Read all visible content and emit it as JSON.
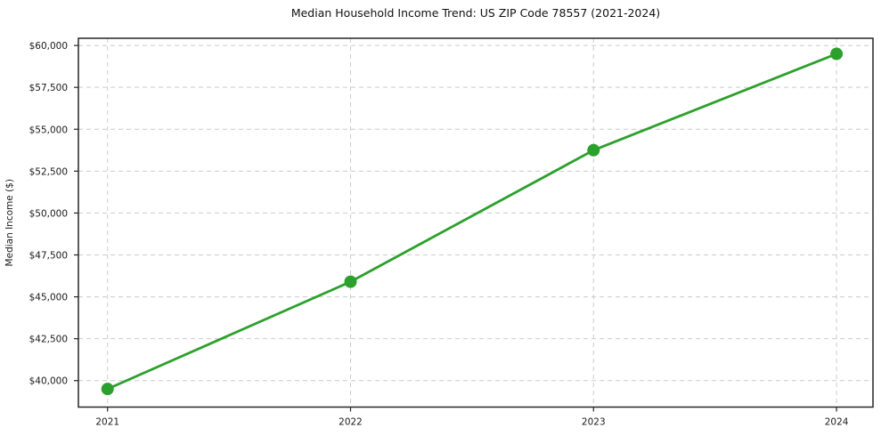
{
  "figure": {
    "background": "#ffffff"
  },
  "chart_data": {
    "type": "line",
    "title": "Median Household Income Trend: US ZIP Code 78557 (2021-2024)",
    "xlabel": "",
    "ylabel": "Median Income ($)",
    "x": [
      2021,
      2022,
      2023,
      2024
    ],
    "x_tick_labels": [
      "2021",
      "2022",
      "2023",
      "2024"
    ],
    "series": [
      {
        "name": "median-household-income",
        "color": "#2ca02c",
        "values": [
          39500,
          45900,
          53750,
          59500
        ]
      }
    ],
    "y_ticks": [
      40000,
      42500,
      45000,
      47500,
      50000,
      52500,
      55000,
      57500,
      60000
    ],
    "y_tick_labels": [
      "$40,000",
      "$42,500",
      "$45,000",
      "$47,500",
      "$50,000",
      "$52,500",
      "$55,000",
      "$57,500",
      "$60,000"
    ],
    "xlim": [
      2020.88,
      2024.15
    ],
    "ylim": [
      38420,
      60430
    ],
    "grid": true,
    "grid_color": "#cccccc",
    "axis_color": "#262626",
    "text_color": "#1a1a1a",
    "legend_position": "none"
  }
}
